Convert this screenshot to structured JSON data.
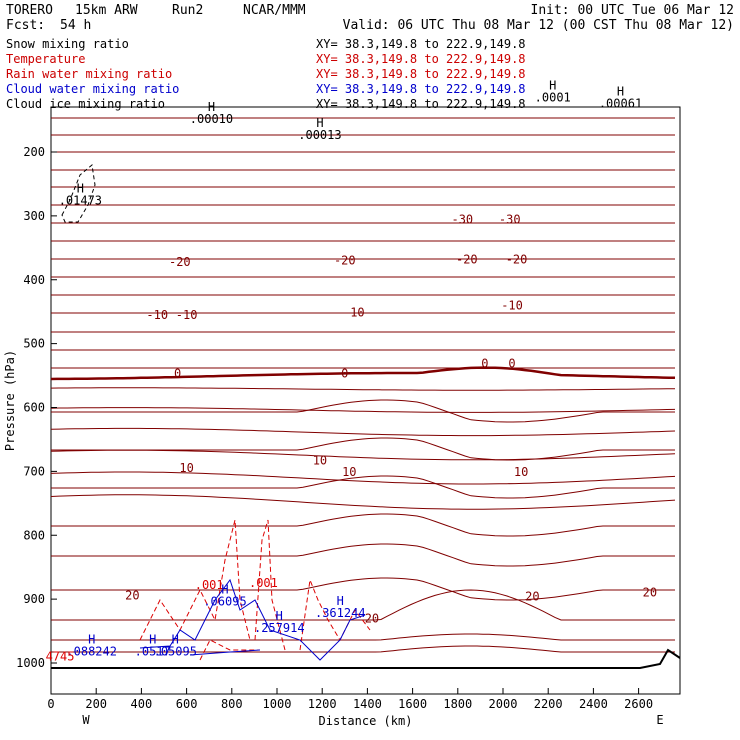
{
  "header": {
    "model": "TORERO",
    "resolution": "15km ARW",
    "run": "Run2",
    "institution": "NCAR/MMM",
    "init": "Init: 00 UTC Tue 06 Mar 12",
    "fcst_label": "Fcst:",
    "fcst_value": "54 h",
    "valid": "Valid: 06 UTC Thu 08 Mar 12 (00 CST Thu 08 Mar 12)"
  },
  "legend": [
    {
      "label": "Snow mixing ratio",
      "color": "#000000",
      "xy": "XY=  38.3,149.8 to 222.9,149.8"
    },
    {
      "label": "Temperature",
      "color": "#cc0000",
      "xy": "XY=  38.3,149.8 to 222.9,149.8"
    },
    {
      "label": "Rain water mixing ratio",
      "color": "#cc0000",
      "xy": "XY=  38.3,149.8 to 222.9,149.8"
    },
    {
      "label": "Cloud water mixing ratio",
      "color": "#0000cc",
      "xy": "XY=  38.3,149.8 to 222.9,149.8"
    },
    {
      "label": "Cloud ice mixing ratio",
      "color": "#000000",
      "xy": "XY=  38.3,149.8 to 222.9,149.8"
    }
  ],
  "chart_data": {
    "type": "line",
    "xlabel": "Distance (km)",
    "ylabel": "Pressure (hPa)",
    "xlim": [
      0,
      2780
    ],
    "ylim": [
      1050,
      100
    ],
    "x_ticks": [
      0,
      200,
      400,
      600,
      800,
      1000,
      1200,
      1400,
      1600,
      1800,
      2000,
      2200,
      2400,
      2600
    ],
    "y_ticks": [
      200,
      300,
      400,
      500,
      600,
      700,
      800,
      900,
      1000
    ],
    "x_end_labels": {
      "left": "W",
      "right": "E"
    },
    "isotherm_labels": [
      {
        "x": 1820,
        "p": 306,
        "text": "-30"
      },
      {
        "x": 2030,
        "p": 306,
        "text": "-30"
      },
      {
        "x": 570,
        "p": 372,
        "text": "-20"
      },
      {
        "x": 1300,
        "p": 370,
        "text": "-20"
      },
      {
        "x": 1840,
        "p": 368,
        "text": "-20"
      },
      {
        "x": 2060,
        "p": 368,
        "text": "-20"
      },
      {
        "x": 470,
        "p": 455,
        "text": "-10"
      },
      {
        "x": 600,
        "p": 455,
        "text": "-10"
      },
      {
        "x": 1340,
        "p": 451,
        "text": "-10"
      },
      {
        "x": 2040,
        "p": 440,
        "text": "-10"
      },
      {
        "x": 560,
        "p": 547,
        "text": "0"
      },
      {
        "x": 1300,
        "p": 547,
        "text": "0"
      },
      {
        "x": 1920,
        "p": 531,
        "text": "0"
      },
      {
        "x": 2040,
        "p": 531,
        "text": "0"
      },
      {
        "x": 600,
        "p": 695,
        "text": "10"
      },
      {
        "x": 1190,
        "p": 683,
        "text": "10"
      },
      {
        "x": 1320,
        "p": 701,
        "text": "10"
      },
      {
        "x": 2080,
        "p": 701,
        "text": "10"
      },
      {
        "x": 360,
        "p": 894,
        "text": "20"
      },
      {
        "x": 1420,
        "p": 930,
        "text": "20"
      },
      {
        "x": 2130,
        "p": 896,
        "text": "20"
      },
      {
        "x": 2650,
        "p": 890,
        "text": "20"
      }
    ],
    "extrema_labels": [
      {
        "x": 710,
        "p": 148,
        "text": ".00010",
        "marker": "H"
      },
      {
        "x": 1190,
        "p": 173,
        "text": ".00013",
        "marker": "H"
      },
      {
        "x": 130,
        "p": 276,
        "text": ".01473",
        "marker": "H"
      },
      {
        "x": 2220,
        "p": 115,
        "text": ".0001",
        "marker": "H"
      },
      {
        "x": 2520,
        "p": 124,
        "text": ".00061",
        "marker": "H"
      },
      {
        "x": 700,
        "p": 878,
        "text": ".001",
        "marker": ""
      },
      {
        "x": 940,
        "p": 875,
        "text": ".001",
        "marker": ""
      },
      {
        "x": 770,
        "p": 904,
        "text": ".06095",
        "marker": "H"
      },
      {
        "x": 1280,
        "p": 922,
        "text": ".361244",
        "marker": "H"
      },
      {
        "x": 1010,
        "p": 945,
        "text": ".257914",
        "marker": "H"
      },
      {
        "x": 180,
        "p": 982,
        "text": ".088242",
        "marker": "H"
      },
      {
        "x": 450,
        "p": 982,
        "text": ".0517",
        "marker": "H"
      },
      {
        "x": 550,
        "p": 982,
        "text": ".05095",
        "marker": "H"
      },
      {
        "x": 40,
        "p": 990,
        "text": "4745",
        "marker": ""
      }
    ]
  }
}
